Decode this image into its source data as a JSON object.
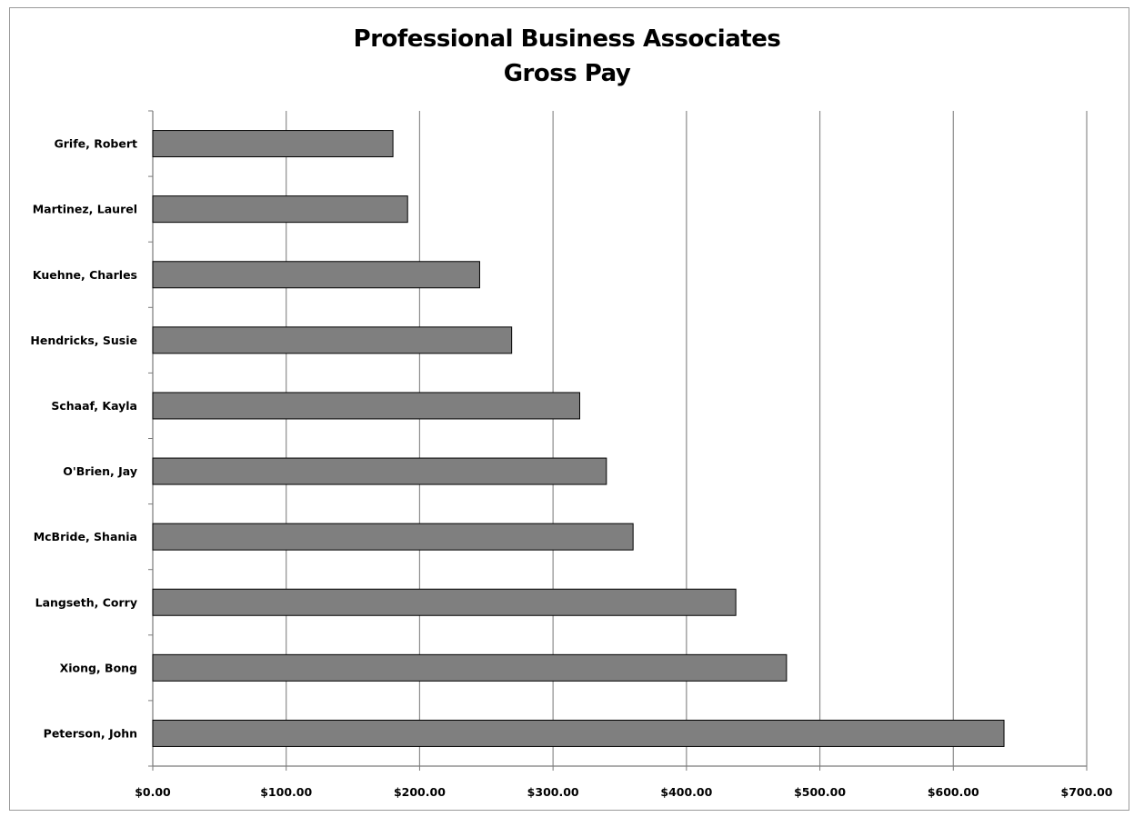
{
  "chart_data": {
    "type": "bar",
    "orientation": "horizontal",
    "title": "Professional Business Associates",
    "subtitle": "Gross Pay",
    "categories": [
      "Grife, Robert",
      "Martinez, Laurel",
      "Kuehne, Charles",
      "Hendricks, Susie",
      "Schaaf, Kayla",
      "O'Brien, Jay",
      "McBride, Shania",
      "Langseth, Corry",
      "Xiong, Bong",
      "Peterson, John"
    ],
    "values": [
      180,
      191,
      245,
      269,
      320,
      340,
      360,
      437,
      475,
      638
    ],
    "xlabel": "",
    "ylabel": "",
    "xlim": [
      0,
      700
    ],
    "x_ticks": [
      0,
      100,
      200,
      300,
      400,
      500,
      600,
      700
    ],
    "x_tick_labels": [
      "$0.00",
      "$100.00",
      "$200.00",
      "$300.00",
      "$400.00",
      "$500.00",
      "$600.00",
      "$700.00"
    ],
    "grid": "vertical",
    "legend": "none",
    "bar_color": "#7f7f7f",
    "bar_edge_color": "#000000",
    "grid_color": "#8c8c8c"
  }
}
